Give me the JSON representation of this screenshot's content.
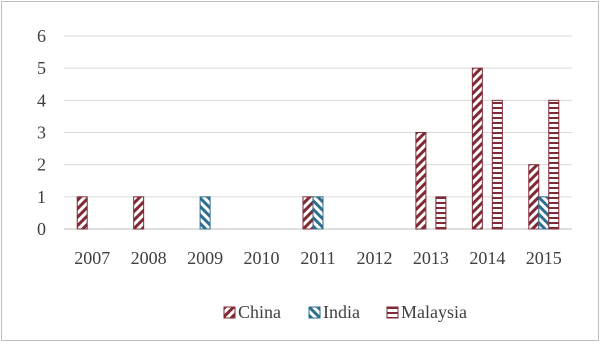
{
  "chart_data": {
    "type": "bar",
    "title": "",
    "xlabel": "",
    "ylabel": "",
    "categories": [
      "2007",
      "2008",
      "2009",
      "2010",
      "2011",
      "2012",
      "2013",
      "2014",
      "2015"
    ],
    "series": [
      {
        "name": "China",
        "values": [
          1,
          1,
          0,
          0,
          1,
          0,
          3,
          5,
          2
        ],
        "color": "#7f2a35",
        "pattern": "diagonal-stripes-right"
      },
      {
        "name": "India",
        "values": [
          0,
          0,
          1,
          0,
          1,
          0,
          0,
          0,
          1
        ],
        "color": "#2e6e8e",
        "pattern": "diagonal-stripes-left"
      },
      {
        "name": "Malaysia",
        "values": [
          0,
          0,
          0,
          0,
          0,
          0,
          1,
          4,
          4
        ],
        "color": "#7f2a35",
        "pattern": "horizontal-stripes"
      }
    ],
    "y_ticks": [
      "0",
      "1",
      "2",
      "3",
      "4",
      "5",
      "6"
    ],
    "ylim": [
      0,
      6
    ],
    "grid": true,
    "legend_position": "bottom"
  }
}
